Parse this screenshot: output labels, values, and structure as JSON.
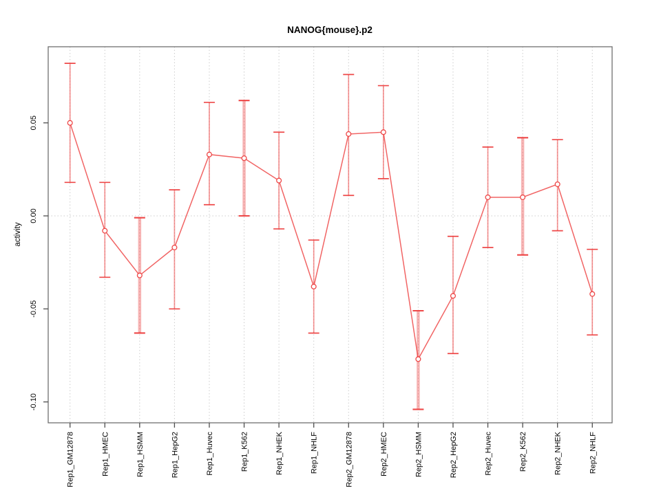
{
  "window": {
    "background": "#ffffff"
  },
  "chart_data": {
    "type": "line",
    "title": "NANOG{mouse}.p2",
    "xlabel": "",
    "ylabel": "activity",
    "legend_position": "none",
    "categories": [
      "Rep1_GM12878",
      "Rep1_HMEC",
      "Rep1_HSMM",
      "Rep1_HepG2",
      "Rep1_Huvec",
      "Rep1_K562",
      "Rep1_NHEK",
      "Rep1_NHLF",
      "Rep2_GM12878",
      "Rep2_HMEC",
      "Rep2_HSMM",
      "Rep2_HepG2",
      "Rep2_Huvec",
      "Rep2_K562",
      "Rep2_NHEK",
      "Rep2_NHLF"
    ],
    "series": [
      {
        "name": "activity",
        "values": [
          0.05,
          -0.008,
          -0.032,
          -0.017,
          0.033,
          0.031,
          0.019,
          -0.038,
          0.044,
          0.045,
          -0.077,
          -0.043,
          0.01,
          0.01,
          0.017,
          -0.042
        ],
        "error_low": [
          0.018,
          -0.033,
          -0.063,
          -0.05,
          0.006,
          0.0,
          -0.007,
          -0.063,
          0.011,
          0.02,
          -0.104,
          -0.074,
          -0.017,
          -0.021,
          -0.008,
          -0.064
        ],
        "error_high": [
          0.082,
          0.018,
          -0.001,
          0.014,
          0.061,
          0.062,
          0.045,
          -0.013,
          0.076,
          0.07,
          -0.051,
          -0.011,
          0.037,
          0.042,
          0.041,
          -0.018
        ],
        "wide_error_bar_indices": [
          2,
          5,
          10,
          13
        ]
      }
    ],
    "y_ticks": [
      {
        "label": "0.05",
        "value": 0.05
      },
      {
        "label": "0.00",
        "value": 0.0
      },
      {
        "label": "-0.05",
        "value": -0.05
      },
      {
        "label": "-0.10",
        "value": -0.1
      }
    ],
    "ylim": [
      -0.111,
      0.091
    ],
    "grid": {
      "vertical_dotted_at_each_category": true,
      "horizontal_dotted_at_zero": true
    },
    "marker": "open-circle",
    "colors": {
      "series_red": "#ed3d3d",
      "error_bar_thin": "rgba(237,61,61,0.55)",
      "error_bar_wide": "rgba(237,61,61,0.38)",
      "error_bar_cap": "rgba(237,61,61,0.95)",
      "grid_gray": "#cccccc",
      "frame_gray": "#6e6e6e",
      "tick_gray": "#4d4d4d",
      "text_black": "#000000"
    }
  }
}
